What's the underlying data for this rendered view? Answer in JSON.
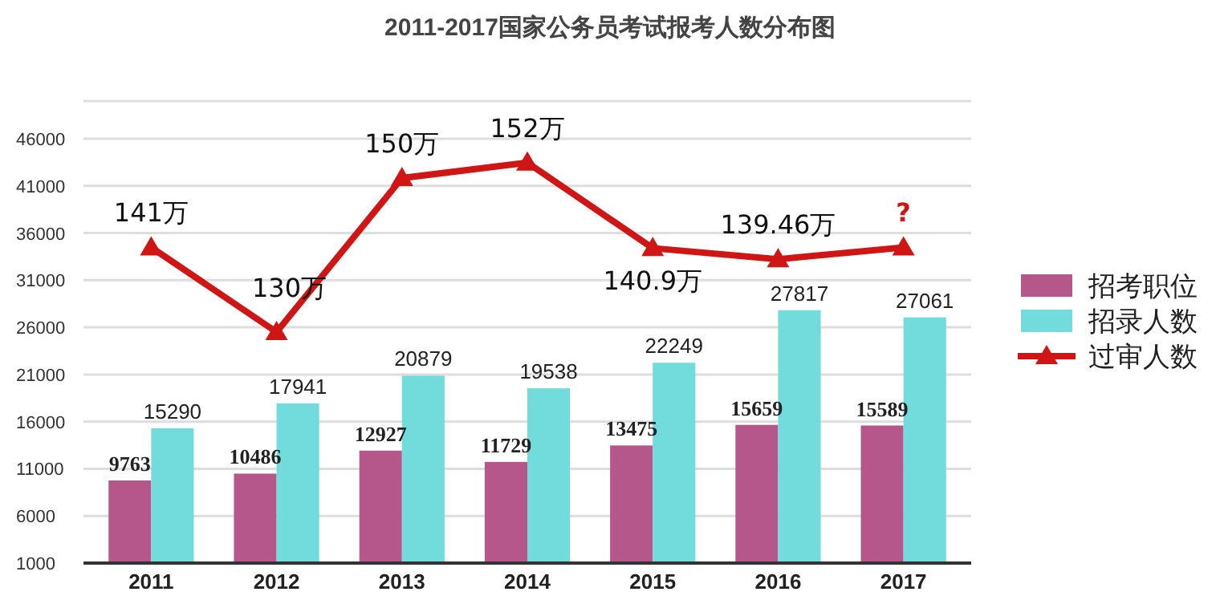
{
  "chart_data": {
    "type": "bar",
    "title": "2011-2017国家公务员考试报考人数分布图",
    "categories": [
      "2011",
      "2012",
      "2013",
      "2014",
      "2015",
      "2016",
      "2017"
    ],
    "series": [
      {
        "name": "招考职位",
        "color": "#b5578a",
        "values": [
          9763,
          10486,
          12927,
          11729,
          13475,
          15659,
          15589
        ]
      },
      {
        "name": "招录人数",
        "color": "#72dcdc",
        "values": [
          15290,
          17941,
          20879,
          19538,
          22249,
          27817,
          27061
        ]
      },
      {
        "name": "过审人数",
        "type": "line",
        "axis": "y2",
        "color": "#d01515",
        "marker": "triangle",
        "values": [
          141,
          130,
          150,
          152,
          140.9,
          139.46,
          141
        ],
        "value_labels": [
          "141万",
          "130万",
          "150万",
          "152万",
          "140.9万",
          "139.46万",
          "?"
        ]
      }
    ],
    "ylim": [
      1000,
      50000
    ],
    "yticks": [
      1000,
      6000,
      11000,
      16000,
      21000,
      26000,
      31000,
      36000,
      41000,
      46000
    ],
    "y2lim": [
      100,
      160
    ],
    "grid": "y",
    "legend": "right",
    "data_labels": true,
    "tick_labels": "xy"
  }
}
